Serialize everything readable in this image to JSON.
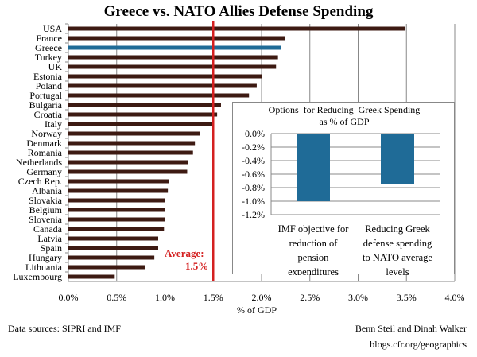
{
  "chart_data": [
    {
      "type": "bar",
      "orientation": "horizontal",
      "title": "Greece vs. NATO Allies Defense Spending",
      "xlabel": "% of GDP",
      "xlim": [
        0,
        4.0
      ],
      "xticks": [
        "0.0%",
        "0.5%",
        "1.0%",
        "1.5%",
        "2.0%",
        "2.5%",
        "3.0%",
        "3.5%",
        "4.0%"
      ],
      "grid": true,
      "categories": [
        "USA",
        "France",
        "Greece",
        "Turkey",
        "UK",
        "Estonia",
        "Poland",
        "Portugal",
        "Bulgaria",
        "Croatia",
        "Italy",
        "Norway",
        "Denmark",
        "Romania",
        "Netherlands",
        "Germany",
        "Czech Rep.",
        "Albania",
        "Slovakia",
        "Belgium",
        "Slovenia",
        "Canada",
        "Latvia",
        "Spain",
        "Hungary",
        "Lithuania",
        "Luxembourg"
      ],
      "values": [
        3.49,
        2.24,
        2.2,
        2.17,
        2.15,
        2.0,
        1.95,
        1.87,
        1.58,
        1.54,
        1.49,
        1.36,
        1.31,
        1.29,
        1.24,
        1.23,
        1.04,
        1.03,
        1.0,
        1.0,
        1.0,
        0.99,
        0.93,
        0.93,
        0.89,
        0.79,
        0.48
      ],
      "highlight": "Greece",
      "colors": {
        "bar": "#3d1a12",
        "highlight": "#1f6b97",
        "average_line": "#d42020"
      },
      "average": {
        "value": 1.5,
        "label_line1": "Average:",
        "label_line2": "1.5%"
      }
    },
    {
      "type": "bar",
      "title_line1": "Options  for Reducing  Greek Spending",
      "title_line2": "as % of GDP",
      "ylim": [
        -1.2,
        0
      ],
      "yticks": [
        "0.0%",
        "-0.2%",
        "-0.4%",
        "-0.6%",
        "-0.8%",
        "-1.0%",
        "-1.2%"
      ],
      "categories": [
        [
          "IMF objective for",
          "reduction of",
          "pension",
          "expenditures"
        ],
        [
          "Reducing Greek",
          "defense spending",
          "to NATO average",
          "levels"
        ]
      ],
      "values": [
        -1.0,
        -0.75
      ],
      "colors": {
        "bar": "#1f6b97"
      }
    }
  ],
  "footer": {
    "sources": "Data sources: SIPRI and IMF",
    "authors": "Benn Steil and Dinah Walker",
    "url": "blogs.cfr.org/geographics"
  }
}
